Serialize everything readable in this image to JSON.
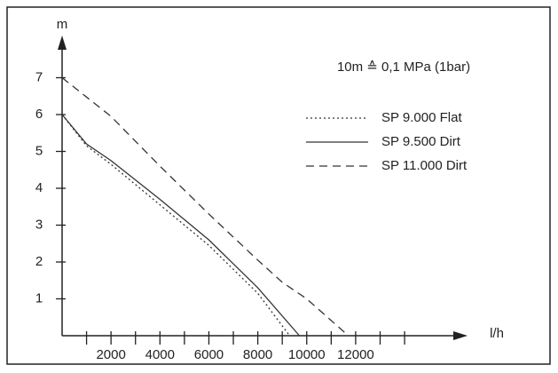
{
  "chart_data": {
    "type": "line",
    "x_label": "l/h",
    "y_label": "m",
    "annotation": "10m ≙ 0,1 MPa (1bar)",
    "xlim": [
      0,
      16500
    ],
    "ylim": [
      0,
      8
    ],
    "xticks": [
      2000,
      4000,
      6000,
      8000,
      10000,
      12000
    ],
    "xminorticks": [
      1000,
      3000,
      5000,
      7000,
      9000,
      11000,
      13000,
      14000
    ],
    "yticks": [
      1,
      2,
      3,
      4,
      5,
      6,
      7
    ],
    "series": [
      {
        "name": "SP 9.000 Flat",
        "color": "#333",
        "dash": "2 3",
        "x": [
          0,
          1000,
          2000,
          4000,
          6000,
          8000,
          9300
        ],
        "values": [
          6,
          5.15,
          4.65,
          3.55,
          2.45,
          1.15,
          0
        ]
      },
      {
        "name": "SP 9.500 Dirt",
        "color": "#333",
        "dash": "none",
        "x": [
          0,
          1000,
          2000,
          4000,
          6000,
          8000,
          9700
        ],
        "values": [
          6,
          5.2,
          4.75,
          3.7,
          2.6,
          1.3,
          0
        ]
      },
      {
        "name": "SP 11.000 Dirt",
        "color": "#333",
        "dash": "9 6",
        "x": [
          0,
          2000,
          4000,
          6000,
          8000,
          9000,
          10000,
          11700
        ],
        "values": [
          7,
          5.95,
          4.6,
          3.3,
          2.05,
          1.45,
          1.0,
          0
        ]
      }
    ]
  }
}
